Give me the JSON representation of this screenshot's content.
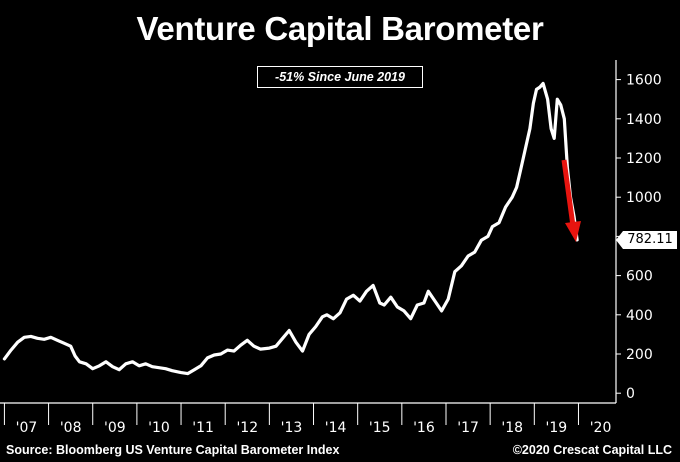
{
  "title": "Venture Capital Barometer",
  "annotation": "-51% Since June 2019",
  "source": "Source: Bloomberg US Venture Capital Barometer Index",
  "copyright": "©2020 Crescat Capital LLC",
  "last_value": "782.11",
  "colors": {
    "background": "#000000",
    "line": "#ffffff",
    "arrow": "#e8140f",
    "text": "#ffffff"
  },
  "chart_data": {
    "type": "line",
    "title": "Venture Capital Barometer",
    "xlabel": "",
    "ylabel": "",
    "ylim": [
      -50,
      1700
    ],
    "y_ticks": [
      0,
      200,
      400,
      600,
      800,
      1000,
      1200,
      1400,
      1600
    ],
    "x_tick_labels": [
      "'07",
      "'08",
      "'09",
      "'10",
      "'11",
      "'12",
      "'13",
      "'14",
      "'15",
      "'16",
      "'17",
      "'18",
      "'19",
      "'20"
    ],
    "xlim": [
      2006.9,
      2020.85
    ],
    "grid": false,
    "axis_position": "right",
    "series": [
      {
        "x": [
          2007.0,
          2007.15,
          2007.3,
          2007.45,
          2007.6,
          2007.75,
          2007.9,
          2008.05,
          2008.2,
          2008.35,
          2008.5,
          2008.6,
          2008.7,
          2008.85,
          2009.0,
          2009.15,
          2009.3,
          2009.45,
          2009.6,
          2009.75,
          2009.9,
          2010.05,
          2010.2,
          2010.35,
          2010.5,
          2010.65,
          2010.8,
          2011.0,
          2011.15,
          2011.3,
          2011.45,
          2011.6,
          2011.75,
          2011.9,
          2012.05,
          2012.2,
          2012.35,
          2012.5,
          2012.65,
          2012.8,
          2013.0,
          2013.15,
          2013.3,
          2013.45,
          2013.6,
          2013.75,
          2013.9,
          2014.05,
          2014.2,
          2014.3,
          2014.45,
          2014.6,
          2014.75,
          2014.9,
          2015.05,
          2015.2,
          2015.35,
          2015.5,
          2015.6,
          2015.75,
          2015.9,
          2016.05,
          2016.2,
          2016.35,
          2016.5,
          2016.6,
          2016.75,
          2016.9,
          2017.05,
          2017.2,
          2017.35,
          2017.5,
          2017.65,
          2017.8,
          2017.95,
          2018.05,
          2018.2,
          2018.35,
          2018.5,
          2018.6,
          2018.7,
          2018.8,
          2018.9,
          2018.98,
          2019.05,
          2019.12,
          2019.2,
          2019.3,
          2019.38,
          2019.45,
          2019.52,
          2019.6,
          2019.68,
          2019.75,
          2019.82,
          2019.9,
          2019.97
        ],
        "values": [
          175,
          220,
          260,
          285,
          290,
          280,
          275,
          285,
          270,
          255,
          240,
          190,
          160,
          150,
          125,
          140,
          160,
          135,
          120,
          150,
          160,
          140,
          150,
          135,
          130,
          125,
          115,
          105,
          100,
          120,
          140,
          180,
          195,
          200,
          220,
          215,
          245,
          270,
          240,
          225,
          230,
          240,
          280,
          320,
          260,
          215,
          300,
          340,
          390,
          400,
          380,
          410,
          480,
          500,
          470,
          520,
          550,
          460,
          450,
          490,
          440,
          420,
          380,
          450,
          460,
          520,
          470,
          420,
          480,
          620,
          650,
          700,
          720,
          780,
          800,
          850,
          870,
          950,
          1000,
          1050,
          1150,
          1250,
          1350,
          1480,
          1550,
          1560,
          1580,
          1500,
          1350,
          1300,
          1500,
          1470,
          1400,
          1150,
          1000,
          900,
          782
        ]
      }
    ],
    "annotations": [
      "-51% Since June 2019",
      "782.11"
    ]
  }
}
